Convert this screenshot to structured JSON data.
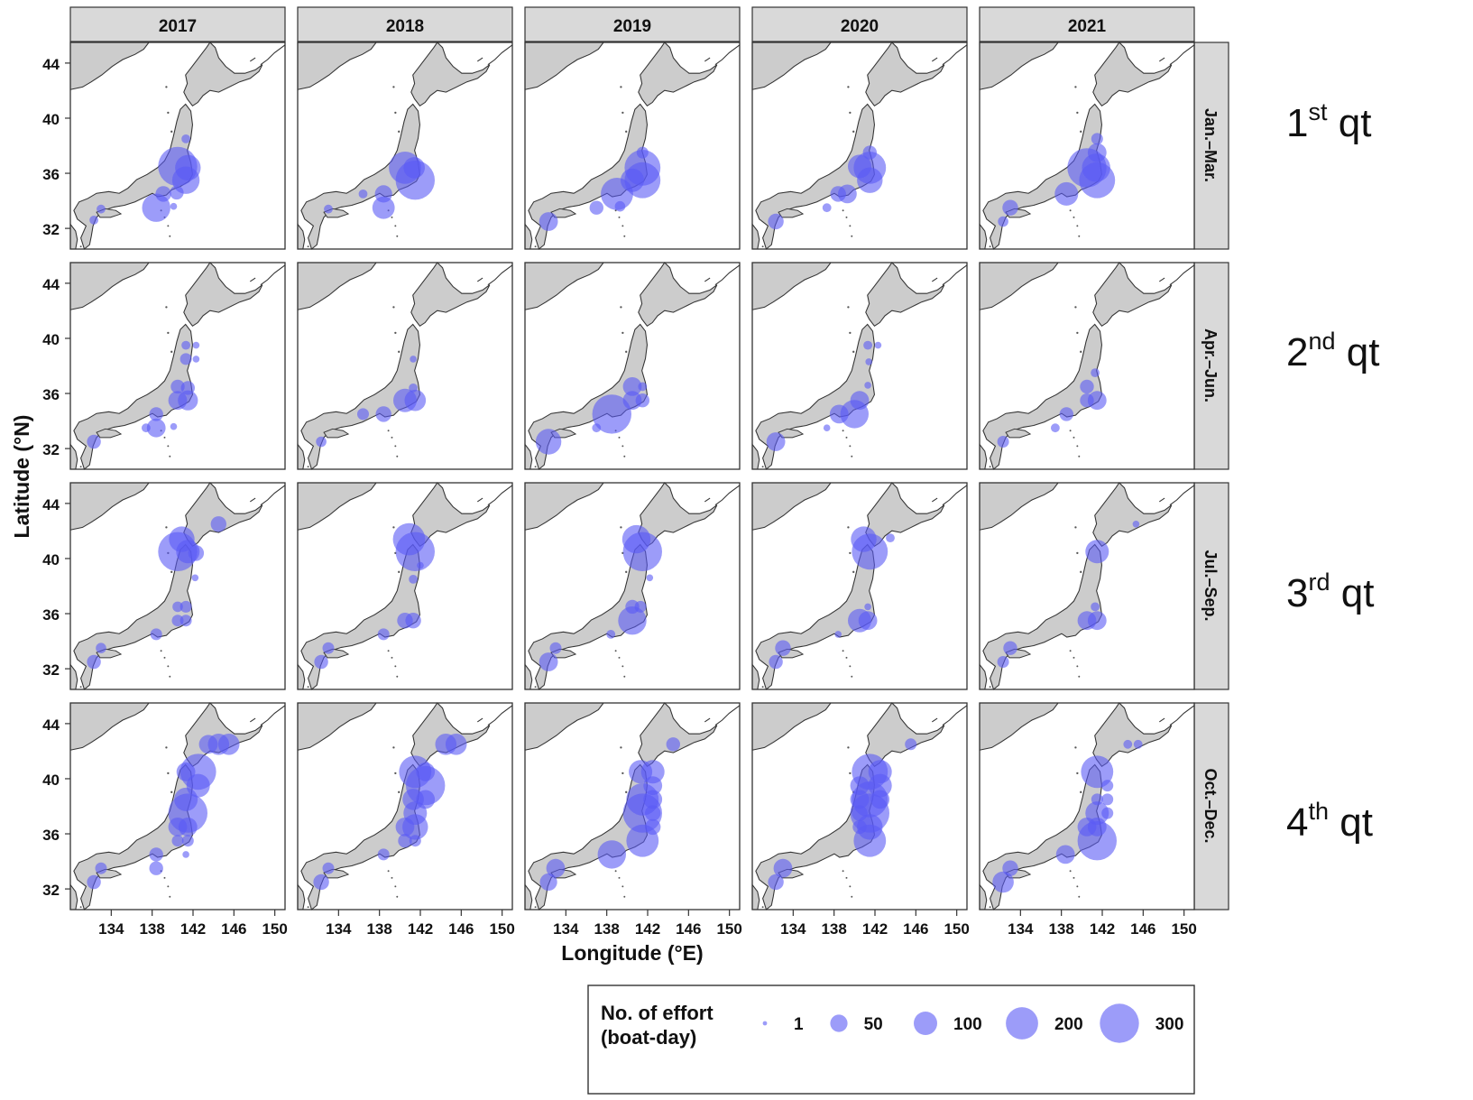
{
  "years": [
    "2017",
    "2018",
    "2019",
    "2020",
    "2021"
  ],
  "quarters": [
    {
      "strip": "Jan.–Mar.",
      "label_num": "1",
      "label_sup": "st",
      "label_text": " qt"
    },
    {
      "strip": "Apr.–Jun.",
      "label_num": "2",
      "label_sup": "nd",
      "label_text": " qt"
    },
    {
      "strip": "Jul.–Sep.",
      "label_num": "3",
      "label_sup": "rd",
      "label_text": " qt"
    },
    {
      "strip": "Oct.–Dec.",
      "label_num": "4",
      "label_sup": "th",
      "label_text": " qt"
    }
  ],
  "y_ticks": [
    "44",
    "40",
    "36",
    "32"
  ],
  "x_ticks": [
    "134",
    "138",
    "142",
    "146",
    "150"
  ],
  "xlabel": "Longitude (°E)",
  "ylabel": "Latitude (°N)",
  "legend": {
    "title_line1": "No. of effort",
    "title_line2": "(boat-day)",
    "items": [
      {
        "label": "1",
        "value": 1
      },
      {
        "label": "50",
        "value": 50
      },
      {
        "label": "100",
        "value": 100
      },
      {
        "label": "200",
        "value": 200
      },
      {
        "label": "300",
        "value": 300
      }
    ]
  },
  "colors": {
    "land": "#cccccc",
    "land_stroke": "#333333",
    "bubble": "#5a5af5",
    "strip_bg": "#d9d9d9",
    "panel_border": "#333333"
  },
  "chart_data": {
    "type": "scatter",
    "xlim": [
      130,
      151
    ],
    "ylim": [
      30.5,
      45.5
    ],
    "size_variable": "No. of effort (boat-day)",
    "points": {
      "0-0": [
        [
          141.5,
          36.4,
          120
        ],
        [
          140.5,
          36.5,
          300
        ],
        [
          141.3,
          35.5,
          140
        ],
        [
          138.4,
          33.5,
          150
        ],
        [
          139.1,
          34.5,
          40
        ],
        [
          140.4,
          34.6,
          30
        ],
        [
          141.3,
          38.5,
          10
        ],
        [
          132.3,
          32.6,
          10
        ],
        [
          133.0,
          33.4,
          10
        ],
        [
          140.1,
          33.6,
          5
        ]
      ],
      "0-1": [
        [
          140.5,
          36.4,
          200
        ],
        [
          141.5,
          35.5,
          300
        ],
        [
          141.4,
          36.4,
          80
        ],
        [
          138.4,
          33.5,
          90
        ],
        [
          138.4,
          34.5,
          50
        ],
        [
          136.4,
          34.5,
          10
        ],
        [
          133.0,
          33.4,
          10
        ]
      ],
      "0-2": [
        [
          141.5,
          36.4,
          250
        ],
        [
          141.5,
          35.5,
          250
        ],
        [
          139.0,
          34.5,
          200
        ],
        [
          140.5,
          35.5,
          100
        ],
        [
          132.3,
          32.5,
          60
        ],
        [
          137.0,
          33.5,
          30
        ],
        [
          141.5,
          37.5,
          20
        ],
        [
          139.3,
          33.6,
          15
        ]
      ],
      "0-3": [
        [
          141.5,
          36.4,
          200
        ],
        [
          141.5,
          35.5,
          120
        ],
        [
          140.5,
          36.5,
          100
        ],
        [
          139.3,
          34.5,
          60
        ],
        [
          138.4,
          34.5,
          40
        ],
        [
          132.3,
          32.5,
          40
        ],
        [
          141.5,
          37.5,
          30
        ],
        [
          137.3,
          33.5,
          10
        ]
      ],
      "0-4": [
        [
          140.5,
          36.4,
          300
        ],
        [
          141.5,
          35.5,
          250
        ],
        [
          141.4,
          36.4,
          150
        ],
        [
          141.5,
          37.5,
          60
        ],
        [
          138.5,
          34.5,
          100
        ],
        [
          133.0,
          33.5,
          40
        ],
        [
          141.5,
          38.5,
          20
        ],
        [
          132.3,
          32.5,
          15
        ]
      ],
      "1-0": [
        [
          141.5,
          35.5,
          70
        ],
        [
          140.5,
          35.5,
          60
        ],
        [
          138.4,
          33.5,
          60
        ],
        [
          138.4,
          34.5,
          30
        ],
        [
          140.5,
          36.5,
          30
        ],
        [
          141.5,
          36.4,
          30
        ],
        [
          132.3,
          32.5,
          30
        ],
        [
          141.3,
          38.5,
          20
        ],
        [
          141.3,
          39.5,
          10
        ],
        [
          142.3,
          39.5,
          5
        ],
        [
          142.3,
          38.5,
          5
        ],
        [
          137.4,
          33.5,
          10
        ],
        [
          140.1,
          33.6,
          5
        ]
      ],
      "1-1": [
        [
          140.5,
          35.5,
          100
        ],
        [
          141.5,
          35.5,
          80
        ],
        [
          138.4,
          34.5,
          40
        ],
        [
          136.4,
          34.5,
          20
        ],
        [
          132.3,
          32.5,
          15
        ],
        [
          141.3,
          38.5,
          5
        ],
        [
          141.3,
          36.4,
          10
        ]
      ],
      "1-2": [
        [
          138.5,
          34.5,
          300
        ],
        [
          132.3,
          32.5,
          120
        ],
        [
          140.5,
          35.5,
          60
        ],
        [
          140.5,
          36.5,
          60
        ],
        [
          141.5,
          35.5,
          30
        ],
        [
          141.5,
          36.5,
          10
        ],
        [
          137.0,
          33.5,
          10
        ]
      ],
      "1-3": [
        [
          140.0,
          34.5,
          150
        ],
        [
          140.5,
          35.5,
          60
        ],
        [
          138.5,
          34.5,
          60
        ],
        [
          132.3,
          32.5,
          60
        ],
        [
          141.3,
          39.5,
          10
        ],
        [
          142.3,
          39.5,
          5
        ],
        [
          141.4,
          38.3,
          5
        ],
        [
          141.3,
          36.6,
          5
        ],
        [
          137.3,
          33.5,
          5
        ]
      ],
      "1-4": [
        [
          141.5,
          35.5,
          60
        ],
        [
          140.5,
          36.5,
          30
        ],
        [
          140.5,
          35.5,
          30
        ],
        [
          138.5,
          34.5,
          30
        ],
        [
          132.3,
          32.5,
          20
        ],
        [
          141.3,
          37.5,
          10
        ],
        [
          137.4,
          33.5,
          10
        ]
      ],
      "2-0": [
        [
          140.5,
          40.5,
          300
        ],
        [
          141.5,
          40.5,
          100
        ],
        [
          140.9,
          41.4,
          120
        ],
        [
          142.3,
          40.4,
          40
        ],
        [
          144.5,
          42.5,
          40
        ],
        [
          141.3,
          36.5,
          20
        ],
        [
          141.3,
          35.5,
          20
        ],
        [
          140.5,
          35.5,
          20
        ],
        [
          140.5,
          36.5,
          15
        ],
        [
          138.4,
          34.5,
          20
        ],
        [
          132.3,
          32.5,
          30
        ],
        [
          133.0,
          33.5,
          15
        ],
        [
          142.2,
          38.6,
          5
        ]
      ],
      "2-1": [
        [
          141.5,
          40.5,
          300
        ],
        [
          140.9,
          41.4,
          200
        ],
        [
          141.3,
          38.5,
          10
        ],
        [
          140.5,
          35.5,
          40
        ],
        [
          141.3,
          35.5,
          40
        ],
        [
          138.4,
          34.5,
          20
        ],
        [
          132.3,
          32.5,
          30
        ],
        [
          133.0,
          33.5,
          20
        ],
        [
          142.0,
          39.5,
          5
        ]
      ],
      "2-2": [
        [
          141.5,
          40.5,
          300
        ],
        [
          140.9,
          41.4,
          150
        ],
        [
          140.5,
          35.5,
          150
        ],
        [
          140.5,
          36.5,
          30
        ],
        [
          141.3,
          36.5,
          20
        ],
        [
          138.4,
          34.5,
          10
        ],
        [
          132.3,
          32.5,
          60
        ],
        [
          133.0,
          33.5,
          20
        ],
        [
          142.2,
          38.6,
          5
        ]
      ],
      "2-3": [
        [
          141.5,
          40.5,
          250
        ],
        [
          140.9,
          41.4,
          120
        ],
        [
          140.5,
          35.5,
          100
        ],
        [
          141.3,
          35.5,
          60
        ],
        [
          143.5,
          41.5,
          10
        ],
        [
          141.3,
          36.5,
          5
        ],
        [
          133.0,
          33.5,
          40
        ],
        [
          132.3,
          32.5,
          30
        ],
        [
          138.4,
          34.5,
          5
        ]
      ],
      "2-4": [
        [
          141.5,
          40.5,
          100
        ],
        [
          140.5,
          35.5,
          60
        ],
        [
          141.5,
          35.5,
          60
        ],
        [
          141.3,
          36.5,
          10
        ],
        [
          145.3,
          42.5,
          5
        ],
        [
          133.0,
          33.5,
          30
        ],
        [
          132.3,
          32.5,
          20
        ]
      ],
      "3-0": [
        [
          141.5,
          37.5,
          300
        ],
        [
          142.5,
          40.5,
          250
        ],
        [
          141.3,
          38.5,
          100
        ],
        [
          142.5,
          39.5,
          100
        ],
        [
          141.3,
          40.5,
          60
        ],
        [
          143.5,
          42.5,
          60
        ],
        [
          144.5,
          42.5,
          80
        ],
        [
          145.5,
          42.5,
          80
        ],
        [
          140.5,
          36.5,
          60
        ],
        [
          141.5,
          36.5,
          60
        ],
        [
          140.5,
          35.5,
          20
        ],
        [
          141.5,
          35.5,
          20
        ],
        [
          138.4,
          34.5,
          30
        ],
        [
          138.4,
          33.5,
          30
        ],
        [
          132.3,
          32.5,
          30
        ],
        [
          133.0,
          33.5,
          20
        ],
        [
          141.3,
          34.5,
          5
        ]
      ],
      "3-1": [
        [
          142.5,
          39.5,
          300
        ],
        [
          141.5,
          40.5,
          200
        ],
        [
          141.5,
          37.5,
          100
        ],
        [
          141.3,
          38.5,
          80
        ],
        [
          141.5,
          36.5,
          120
        ],
        [
          140.5,
          36.5,
          60
        ],
        [
          142.5,
          40.5,
          60
        ],
        [
          142.5,
          38.5,
          60
        ],
        [
          140.5,
          35.5,
          30
        ],
        [
          141.5,
          35.5,
          20
        ],
        [
          144.5,
          42.5,
          80
        ],
        [
          145.5,
          42.5,
          80
        ],
        [
          138.4,
          34.5,
          20
        ],
        [
          132.3,
          32.5,
          40
        ],
        [
          133.0,
          33.5,
          20
        ]
      ],
      "3-2": [
        [
          141.5,
          37.5,
          300
        ],
        [
          141.5,
          38.5,
          200
        ],
        [
          141.5,
          35.5,
          200
        ],
        [
          142.5,
          40.5,
          100
        ],
        [
          141.3,
          40.5,
          100
        ],
        [
          142.5,
          39.5,
          60
        ],
        [
          142.5,
          38.5,
          60
        ],
        [
          142.5,
          37.5,
          40
        ],
        [
          142.5,
          36.5,
          40
        ],
        [
          138.5,
          34.5,
          150
        ],
        [
          133.0,
          33.5,
          60
        ],
        [
          132.3,
          32.5,
          50
        ],
        [
          144.5,
          42.5,
          30
        ]
      ],
      "3-3": [
        [
          141.5,
          37.5,
          300
        ],
        [
          141.5,
          38.5,
          250
        ],
        [
          141.5,
          40.5,
          250
        ],
        [
          141.5,
          35.5,
          200
        ],
        [
          142.5,
          40.5,
          100
        ],
        [
          142.5,
          39.5,
          100
        ],
        [
          142.5,
          38.5,
          60
        ],
        [
          141.5,
          36.5,
          120
        ],
        [
          140.5,
          39.5,
          60
        ],
        [
          140.5,
          38.5,
          60
        ],
        [
          140.5,
          37.5,
          40
        ],
        [
          140.5,
          36.5,
          30
        ],
        [
          133.0,
          33.5,
          60
        ],
        [
          132.3,
          32.5,
          40
        ],
        [
          145.5,
          42.5,
          20
        ]
      ],
      "3-4": [
        [
          141.5,
          35.5,
          300
        ],
        [
          141.5,
          40.5,
          200
        ],
        [
          141.5,
          37.5,
          100
        ],
        [
          141.5,
          36.5,
          60
        ],
        [
          140.5,
          36.5,
          60
        ],
        [
          142.5,
          38.5,
          20
        ],
        [
          142.5,
          39.5,
          20
        ],
        [
          142.5,
          37.5,
          20
        ],
        [
          141.5,
          38.5,
          20
        ],
        [
          138.4,
          34.5,
          60
        ],
        [
          132.3,
          32.5,
          80
        ],
        [
          133.0,
          33.5,
          40
        ],
        [
          144.5,
          42.5,
          10
        ],
        [
          145.5,
          42.5,
          10
        ]
      ]
    }
  }
}
